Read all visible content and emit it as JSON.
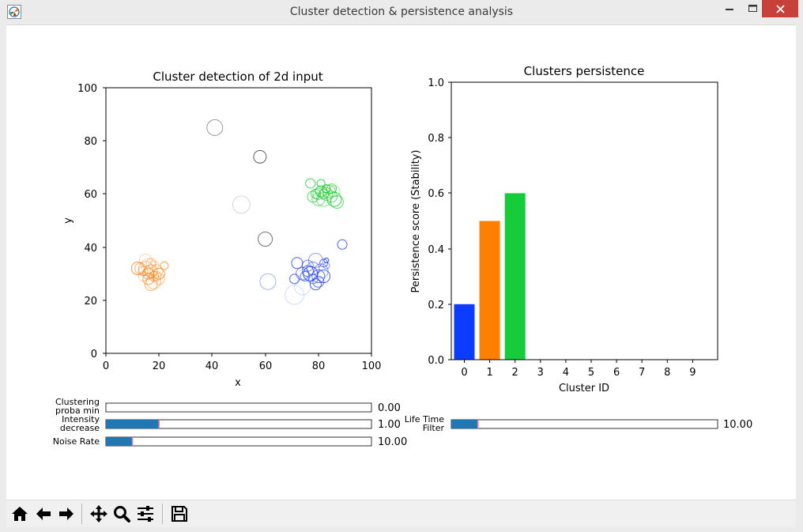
{
  "window": {
    "title": "Cluster detection & persistence analysis",
    "icons": {
      "app": "matplotlib-app-icon",
      "minimize": "minimize-icon",
      "maximize": "maximize-icon",
      "close": "close-icon"
    },
    "close_color": "#c7403a"
  },
  "scatter_chart": {
    "title": "Cluster detection of 2d input",
    "xlabel": "x",
    "ylabel": "y",
    "xlim": [
      0,
      100
    ],
    "ylim": [
      0,
      100
    ],
    "xticks": [
      "0",
      "20",
      "40",
      "60",
      "80",
      "100"
    ],
    "yticks": [
      "0",
      "20",
      "40",
      "60",
      "80",
      "100"
    ]
  },
  "bar_chart": {
    "title": "Clusters persistence",
    "xlabel": "Cluster ID",
    "ylabel": "Persistence score (Stability)",
    "ylim": [
      0,
      1
    ],
    "yticks": [
      "0.0",
      "0.2",
      "0.4",
      "0.6",
      "0.8",
      "1.0"
    ],
    "xticks": [
      "0",
      "1",
      "2",
      "3",
      "4",
      "5",
      "6",
      "7",
      "8",
      "9"
    ]
  },
  "sliders": [
    {
      "label_line1": "Clustering",
      "label_line2": "proba min",
      "value_text": "0.00",
      "fill_fraction": 0.0
    },
    {
      "label_line1": "Intensity",
      "label_line2": "decrease",
      "value_text": "1.00",
      "fill_fraction": 0.2
    },
    {
      "label_line1": "Noise Rate",
      "label_line2": "",
      "value_text": "10.00",
      "fill_fraction": 0.1
    },
    {
      "label_line1": "Life Time",
      "label_line2": "Filter",
      "value_text": "10.00",
      "fill_fraction": 0.1
    }
  ],
  "slider_colors": {
    "fill": "#1f77b4",
    "handle": "#e377c2"
  },
  "toolbar": {
    "icons": [
      "home-icon",
      "back-icon",
      "forward-icon",
      "pan-icon",
      "zoom-icon",
      "configure-subplots-icon",
      "save-icon"
    ]
  },
  "chart_data": [
    {
      "type": "scatter",
      "title": "Cluster detection of 2d input",
      "xlabel": "x",
      "ylabel": "y",
      "xlim": [
        0,
        100
      ],
      "ylim": [
        0,
        100
      ],
      "grid": false,
      "series": [
        {
          "color": "#ff7f0e",
          "points": [
            [
              12,
              32
            ],
            [
              14,
              31
            ],
            [
              15,
              32
            ],
            [
              16,
              30
            ],
            [
              17,
              31
            ],
            [
              18,
              33
            ],
            [
              16,
              28
            ],
            [
              18,
              27
            ],
            [
              19,
              29
            ],
            [
              20,
              30
            ],
            [
              22,
              33
            ],
            [
              15,
              35
            ],
            [
              17,
              34
            ],
            [
              13,
              32
            ],
            [
              19,
              31
            ],
            [
              16,
              33
            ],
            [
              18,
              29
            ],
            [
              20,
              28
            ],
            [
              17,
              26
            ],
            [
              14,
              29
            ]
          ],
          "r": [
            8,
            6,
            9,
            7,
            8,
            6,
            7,
            9,
            6,
            7,
            5,
            8,
            6,
            7,
            8,
            9,
            6,
            7,
            8,
            6
          ],
          "a": [
            0.8,
            0.6,
            0.5,
            0.7,
            0.6,
            0.4,
            0.7,
            0.5,
            0.6,
            0.8,
            0.7,
            0.3,
            0.5,
            0.6,
            0.4,
            0.3,
            0.7,
            0.5,
            0.6,
            0.4
          ]
        },
        {
          "color": "#1f3ff0",
          "points": [
            [
              72,
              34
            ],
            [
              74,
              30
            ],
            [
              76,
              31
            ],
            [
              77,
              30
            ],
            [
              78,
              28
            ],
            [
              79,
              26
            ],
            [
              80,
              29
            ],
            [
              81,
              31
            ],
            [
              82,
              29
            ],
            [
              82,
              34
            ],
            [
              83,
              35
            ],
            [
              75,
              29
            ],
            [
              71,
              28
            ],
            [
              79,
              35
            ],
            [
              76,
              33
            ],
            [
              78,
              32
            ],
            [
              80,
              27
            ],
            [
              83,
              33
            ],
            [
              89,
              41
            ],
            [
              61,
              27
            ],
            [
              71,
              22
            ],
            [
              74,
              25
            ]
          ],
          "r": [
            7,
            8,
            7,
            9,
            6,
            7,
            8,
            9,
            8,
            5,
            3,
            6,
            6,
            9,
            7,
            8,
            7,
            4,
            6,
            10,
            12,
            10
          ],
          "a": [
            0.8,
            0.6,
            0.7,
            0.9,
            0.6,
            0.8,
            0.7,
            0.5,
            0.8,
            0.7,
            0.9,
            0.7,
            0.8,
            0.5,
            0.6,
            0.6,
            0.7,
            0.6,
            0.8,
            0.4,
            0.2,
            0.2
          ]
        },
        {
          "color": "#17cc28",
          "points": [
            [
              77,
              64
            ],
            [
              78,
              59
            ],
            [
              79,
              60
            ],
            [
              80,
              58
            ],
            [
              81,
              61
            ],
            [
              82,
              60
            ],
            [
              83,
              62
            ],
            [
              84,
              61
            ],
            [
              85,
              59
            ],
            [
              86,
              58
            ],
            [
              87,
              57
            ],
            [
              84,
              63
            ],
            [
              81,
              64
            ],
            [
              80,
              60
            ],
            [
              82,
              58
            ],
            [
              85,
              62
            ],
            [
              83,
              60
            ],
            [
              86,
              61
            ]
          ],
          "r": [
            6,
            7,
            6,
            8,
            7,
            6,
            5,
            8,
            7,
            9,
            8,
            10,
            5,
            7,
            9,
            6,
            8,
            7
          ],
          "a": [
            0.8,
            0.7,
            0.7,
            0.6,
            0.8,
            0.7,
            0.9,
            0.6,
            0.7,
            0.8,
            0.7,
            0.1,
            0.8,
            0.6,
            0.5,
            0.7,
            0.6,
            0.4
          ]
        },
        {
          "color": "#333333",
          "points": [
            [
              41,
              85
            ],
            [
              58,
              74
            ],
            [
              60,
              43
            ],
            [
              51,
              56
            ]
          ],
          "r": [
            10,
            8,
            9,
            11
          ],
          "a": [
            0.5,
            0.8,
            0.7,
            0.2
          ]
        }
      ]
    },
    {
      "type": "bar",
      "title": "Clusters persistence",
      "xlabel": "Cluster ID",
      "ylabel": "Persistence score (Stability)",
      "categories": [
        "0",
        "1",
        "2",
        "3",
        "4",
        "5",
        "6",
        "7",
        "8",
        "9"
      ],
      "values": [
        0.2,
        0.5,
        0.6,
        0,
        0,
        0,
        0,
        0,
        0,
        0
      ],
      "colors": [
        "#0b3cff",
        "#ff7f00",
        "#17cc3a"
      ],
      "ylim": [
        0,
        1
      ]
    }
  ]
}
